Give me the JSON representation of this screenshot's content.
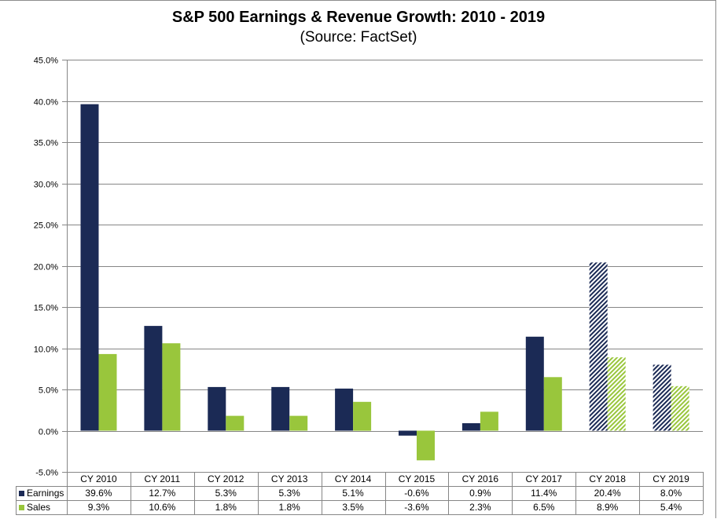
{
  "chart_data": {
    "type": "bar",
    "title": "S&P 500 Earnings & Revenue Growth:  2010 - 2019",
    "subtitle": "(Source: FactSet)",
    "xlabel": "",
    "ylabel": "",
    "ylim": [
      -5,
      45
    ],
    "ytick_step": 5,
    "ytick_labels": [
      "-5.0%",
      "0.0%",
      "5.0%",
      "10.0%",
      "15.0%",
      "20.0%",
      "25.0%",
      "30.0%",
      "35.0%",
      "40.0%",
      "45.0%"
    ],
    "grid": true,
    "legend": "data-table-left",
    "categories": [
      "CY 2010",
      "CY 2011",
      "CY 2012",
      "CY 2013",
      "CY 2014",
      "CY 2015",
      "CY 2016",
      "CY 2017",
      "CY 2018",
      "CY 2019"
    ],
    "estimated_categories": [
      "CY 2018",
      "CY 2019"
    ],
    "series": [
      {
        "name": "Earnings",
        "color": "#1b2a55",
        "values": [
          39.6,
          12.7,
          5.3,
          5.3,
          5.1,
          -0.6,
          0.9,
          11.4,
          20.4,
          8.0
        ],
        "labels": [
          "39.6%",
          "12.7%",
          "5.3%",
          "5.3%",
          "5.1%",
          "-0.6%",
          "0.9%",
          "11.4%",
          "20.4%",
          "8.0%"
        ]
      },
      {
        "name": "Sales",
        "color": "#99c63c",
        "values": [
          9.3,
          10.6,
          1.8,
          1.8,
          3.5,
          -3.6,
          2.3,
          6.5,
          8.9,
          5.4
        ],
        "labels": [
          "9.3%",
          "10.6%",
          "1.8%",
          "1.8%",
          "3.5%",
          "-3.6%",
          "2.3%",
          "6.5%",
          "8.9%",
          "5.4%"
        ]
      }
    ]
  }
}
